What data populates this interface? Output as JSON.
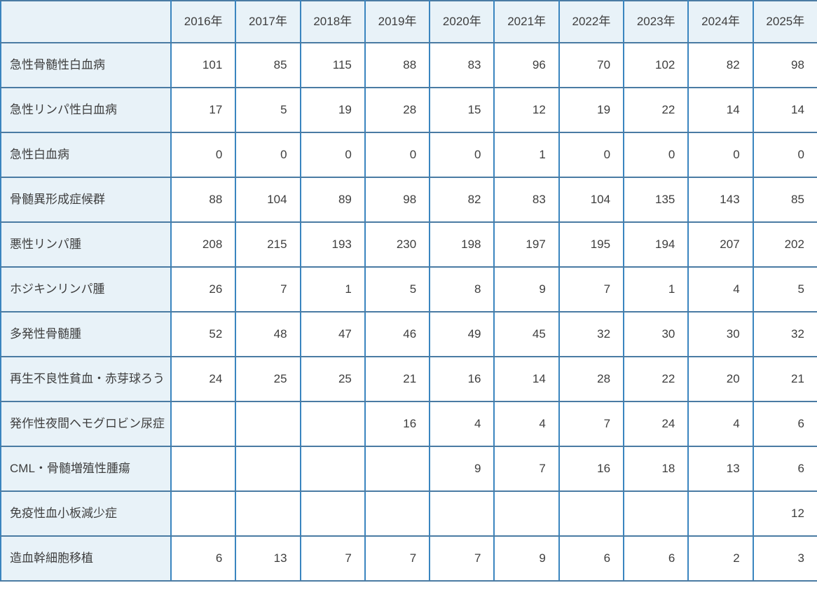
{
  "chart_data": {
    "type": "table",
    "title": "",
    "corner_label": "",
    "columns": [
      "2016年",
      "2017年",
      "2018年",
      "2019年",
      "2020年",
      "2021年",
      "2022年",
      "2023年",
      "2024年",
      "2025年"
    ],
    "rows": [
      {
        "label": "急性骨髄性白血病",
        "values": [
          "101",
          "85",
          "115",
          "88",
          "83",
          "96",
          "70",
          "102",
          "82",
          "98"
        ]
      },
      {
        "label": "急性リンパ性白血病",
        "values": [
          "17",
          "5",
          "19",
          "28",
          "15",
          "12",
          "19",
          "22",
          "14",
          "14"
        ]
      },
      {
        "label": "急性白血病",
        "values": [
          "0",
          "0",
          "0",
          "0",
          "0",
          "1",
          "0",
          "0",
          "0",
          "0"
        ]
      },
      {
        "label": "骨髄異形成症候群",
        "values": [
          "88",
          "104",
          "89",
          "98",
          "82",
          "83",
          "104",
          "135",
          "143",
          "85"
        ]
      },
      {
        "label": "悪性リンパ腫",
        "values": [
          "208",
          "215",
          "193",
          "230",
          "198",
          "197",
          "195",
          "194",
          "207",
          "202"
        ]
      },
      {
        "label": "ホジキンリンパ腫",
        "values": [
          "26",
          "7",
          "1",
          "5",
          "8",
          "9",
          "7",
          "1",
          "4",
          "5"
        ]
      },
      {
        "label": "多発性骨髄腫",
        "values": [
          "52",
          "48",
          "47",
          "46",
          "49",
          "45",
          "32",
          "30",
          "30",
          "32"
        ]
      },
      {
        "label": "再生不良性貧血・赤芽球ろう",
        "values": [
          "24",
          "25",
          "25",
          "21",
          "16",
          "14",
          "28",
          "22",
          "20",
          "21"
        ]
      },
      {
        "label": "発作性夜間ヘモグロビン尿症",
        "values": [
          "",
          "",
          "",
          "16",
          "4",
          "4",
          "7",
          "24",
          "4",
          "6"
        ]
      },
      {
        "label": "CML・骨髄増殖性腫瘍",
        "values": [
          "",
          "",
          "",
          "",
          "9",
          "7",
          "16",
          "18",
          "13",
          "6"
        ]
      },
      {
        "label": "免疫性血小板減少症",
        "values": [
          "",
          "",
          "",
          "",
          "",
          "",
          "",
          "",
          "",
          "12"
        ]
      },
      {
        "label": "造血幹細胞移植",
        "values": [
          "6",
          "13",
          "7",
          "7",
          "7",
          "9",
          "6",
          "6",
          "2",
          "3"
        ]
      }
    ],
    "layout": {
      "grid": true,
      "header_background": "#e8f2f8",
      "label_column_background": "#e8f2f8",
      "cell_background": "#ffffff",
      "border_color_vertical": "#3a85bf",
      "border_color_horizontal": "#4a7ba3",
      "text_color": "#3e3e3e"
    }
  }
}
